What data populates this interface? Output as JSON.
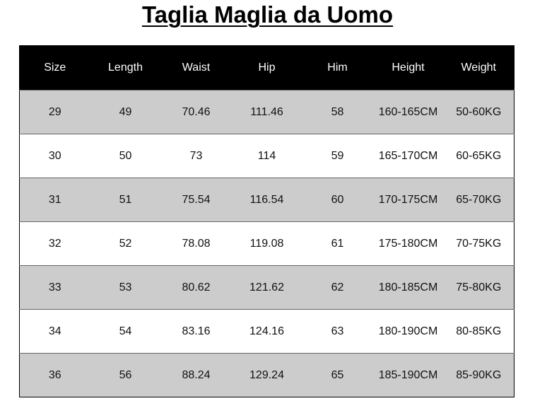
{
  "title": "Taglia Maglia da Uomo",
  "table": {
    "headers": [
      "Size",
      "Length",
      "Waist",
      "Hip",
      "Him",
      "Height",
      "Weight"
    ],
    "rows": [
      [
        "29",
        "49",
        "70.46",
        "111.46",
        "58",
        "160-165CM",
        "50-60KG"
      ],
      [
        "30",
        "50",
        "73",
        "114",
        "59",
        "165-170CM",
        "60-65KG"
      ],
      [
        "31",
        "51",
        "75.54",
        "116.54",
        "60",
        "170-175CM",
        "65-70KG"
      ],
      [
        "32",
        "52",
        "78.08",
        "119.08",
        "61",
        "175-180CM",
        "70-75KG"
      ],
      [
        "33",
        "53",
        "80.62",
        "121.62",
        "62",
        "180-185CM",
        "75-80KG"
      ],
      [
        "34",
        "54",
        "83.16",
        "124.16",
        "63",
        "180-190CM",
        "80-85KG"
      ],
      [
        "36",
        "56",
        "88.24",
        "129.24",
        "65",
        "185-190CM",
        "85-90KG"
      ]
    ]
  },
  "colors": {
    "header_bg": "#000000",
    "row_alt": "#cccccc",
    "row_plain": "#ffffff"
  }
}
